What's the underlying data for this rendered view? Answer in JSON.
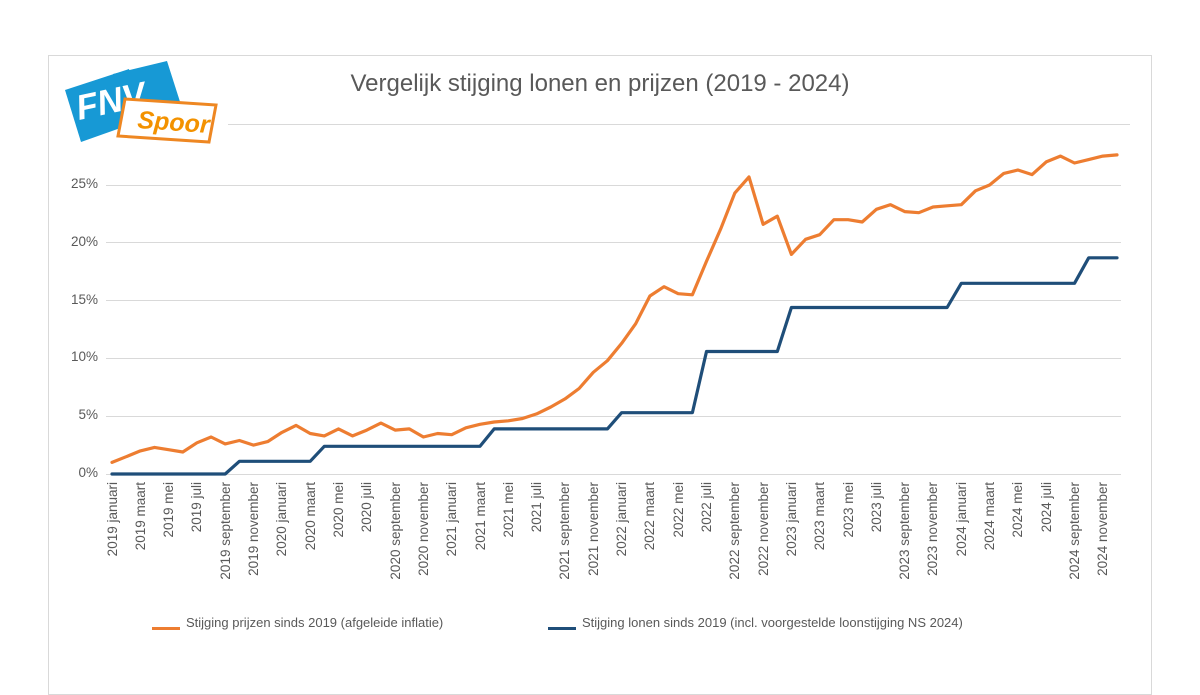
{
  "logo": {
    "fnv_text": "FNV",
    "spoor_text": "Spoor",
    "blue": "#1799d5",
    "orange": "#f39200"
  },
  "title": "Vergelijk stijging lonen en prijzen (2019 - 2024)",
  "y_axis": {
    "labels": [
      "0%",
      "5%",
      "10%",
      "15%",
      "20%",
      "25%"
    ]
  },
  "legend": [
    {
      "label": "Stijging prijzen sinds 2019 (afgeleide inflatie)",
      "color": "#ED7D31"
    },
    {
      "label": "Stijging lonen sinds 2019 (incl. voorgestelde loonstijging NS 2024)",
      "color": "#1F4E79"
    }
  ],
  "chart_data": {
    "type": "line",
    "title": "Vergelijk stijging lonen en prijzen (2019 - 2024)",
    "x_start": "2019 januari",
    "x_end": "2024 december",
    "x_monthly": true,
    "x_label_interval": 2,
    "x_labels": [
      "2019 januari",
      "2019 maart",
      "2019 mei",
      "2019 juli",
      "2019 september",
      "2019 november",
      "2020 januari",
      "2020 maart",
      "2020 mei",
      "2020 juli",
      "2020 september",
      "2020 november",
      "2021 januari",
      "2021 maart",
      "2021 mei",
      "2021 juli",
      "2021 september",
      "2021 november",
      "2022 januari",
      "2022 maart",
      "2022 mei",
      "2022 juli",
      "2022 september",
      "2022 november",
      "2023 januari",
      "2023 maart",
      "2023 mei",
      "2023 juli",
      "2023 september",
      "2023 november",
      "2024 januari",
      "2024 maart",
      "2024 mei",
      "2024 juli",
      "2024 september",
      "2024 november"
    ],
    "y_ticks": [
      0,
      5,
      10,
      15,
      20,
      25
    ],
    "y_tick_labels": [
      "0%",
      "5%",
      "10%",
      "15%",
      "20%",
      "25%"
    ],
    "y_unit": "%",
    "ylim": [
      0,
      28
    ],
    "grid": "horizontal",
    "legend_position": "bottom",
    "series": [
      {
        "name": "Stijging prijzen sinds 2019 (afgeleide inflatie)",
        "color": "#ED7D31",
        "data_name": "prijzen-line-series",
        "values": [
          1.0,
          1.5,
          2.0,
          2.3,
          2.1,
          1.9,
          2.7,
          3.2,
          2.6,
          2.9,
          2.5,
          2.8,
          3.6,
          4.2,
          3.5,
          3.3,
          3.9,
          3.3,
          3.8,
          4.4,
          3.8,
          3.9,
          3.2,
          3.5,
          3.4,
          4.0,
          4.3,
          4.5,
          4.6,
          4.8,
          5.2,
          5.8,
          6.5,
          7.4,
          8.8,
          9.8,
          11.3,
          13.0,
          15.4,
          16.2,
          15.6,
          15.5,
          18.4,
          21.2,
          24.3,
          25.7,
          21.6,
          22.3,
          19.0,
          20.3,
          20.7,
          22.0,
          22.0,
          21.8,
          22.9,
          23.3,
          22.7,
          22.6,
          23.1,
          23.2,
          23.3,
          24.5,
          25.0,
          26.0,
          26.3,
          25.9,
          27.0,
          27.5,
          26.9,
          27.2,
          27.5,
          27.6
        ]
      },
      {
        "name": "Stijging lonen sinds 2019 (incl. voorgestelde loonstijging NS 2024)",
        "color": "#1F4E79",
        "data_name": "lonen-line-series",
        "values": [
          0,
          0,
          0,
          0,
          0,
          0,
          0,
          0,
          0,
          1.1,
          1.1,
          1.1,
          1.1,
          1.1,
          1.1,
          2.4,
          2.4,
          2.4,
          2.4,
          2.4,
          2.4,
          2.4,
          2.4,
          2.4,
          2.4,
          2.4,
          2.4,
          3.9,
          3.9,
          3.9,
          3.9,
          3.9,
          3.9,
          3.9,
          3.9,
          3.9,
          5.3,
          5.3,
          5.3,
          5.3,
          5.3,
          5.3,
          10.6,
          10.6,
          10.6,
          10.6,
          10.6,
          10.6,
          14.4,
          14.4,
          14.4,
          14.4,
          14.4,
          14.4,
          14.4,
          14.4,
          14.4,
          14.4,
          14.4,
          14.4,
          16.5,
          16.5,
          16.5,
          16.5,
          16.5,
          16.5,
          16.5,
          16.5,
          16.5,
          18.7,
          18.7,
          18.7
        ]
      }
    ]
  }
}
